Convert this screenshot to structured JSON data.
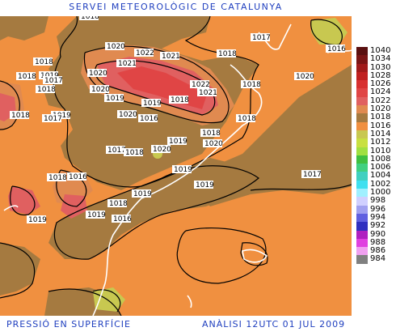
{
  "header": {
    "title": "SERVEI METEOROLÒGIC DE CATALUNYA"
  },
  "footer": {
    "left": "PRESSIÓ EN SUPERFÍCIE",
    "right": "ANÀLISI 12UTC 01 JUL 2009"
  },
  "legend": [
    {
      "label": "1040",
      "color": "#5a1010"
    },
    {
      "label": "1034",
      "color": "#7a1515"
    },
    {
      "label": "1030",
      "color": "#a01a1a"
    },
    {
      "label": "1028",
      "color": "#c02020"
    },
    {
      "label": "1026",
      "color": "#d83030"
    },
    {
      "label": "1024",
      "color": "#e04545"
    },
    {
      "label": "1022",
      "color": "#e06060"
    },
    {
      "label": "1020",
      "color": "#e08a50"
    },
    {
      "label": "1018",
      "color": "#a57a40"
    },
    {
      "label": "1016",
      "color": "#f09040"
    },
    {
      "label": "1014",
      "color": "#c8c850"
    },
    {
      "label": "1012",
      "color": "#c8e040"
    },
    {
      "label": "1010",
      "color": "#a0e040"
    },
    {
      "label": "1008",
      "color": "#40c040"
    },
    {
      "label": "1006",
      "color": "#40d080"
    },
    {
      "label": "1004",
      "color": "#40d0c0"
    },
    {
      "label": "1002",
      "color": "#40e0f0"
    },
    {
      "label": "1000",
      "color": "#a0f0ff"
    },
    {
      "label": "998",
      "color": "#d0d0ff"
    },
    {
      "label": "996",
      "color": "#a0a0f0"
    },
    {
      "label": "994",
      "color": "#6060e0"
    },
    {
      "label": "992",
      "color": "#3030c0"
    },
    {
      "label": "990",
      "color": "#b020c0"
    },
    {
      "label": "988",
      "color": "#e040e0"
    },
    {
      "label": "986",
      "color": "#f0a0f0"
    },
    {
      "label": "984",
      "color": "#808080"
    }
  ],
  "isobar_labels": [
    "1018",
    "1020",
    "1022",
    "1021",
    "1018",
    "1017",
    "1016",
    "1018",
    "1019",
    "1018",
    "1020",
    "1021",
    "1018",
    "1017",
    "1020",
    "1019",
    "1018",
    "1020",
    "1022",
    "1021",
    "1019",
    "1018",
    "1020",
    "1019",
    "1018",
    "1017",
    "1018",
    "1016",
    "1018",
    "1020",
    "1017",
    "1018",
    "1020",
    "1019",
    "1019",
    "1019",
    "1017",
    "1018",
    "1016",
    "1019",
    "1018",
    "1019",
    "1019",
    "1016"
  ]
}
